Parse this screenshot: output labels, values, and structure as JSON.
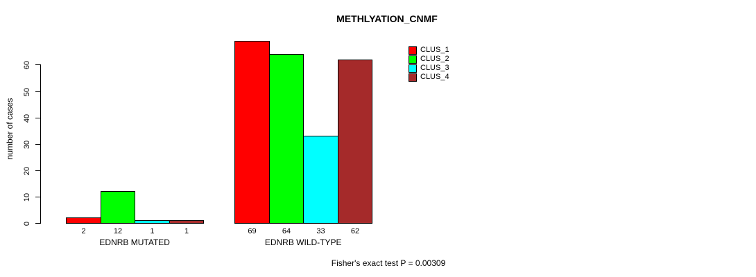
{
  "chart_data": {
    "type": "bar",
    "title": "METHLYATION_CNMF",
    "ylabel": "number of cases",
    "xlabel": "",
    "categories": [
      "EDNRB MUTATED",
      "EDNRB WILD-TYPE"
    ],
    "series": [
      {
        "name": "CLUS_1",
        "color": "#FF0000",
        "values": [
          2,
          69
        ]
      },
      {
        "name": "CLUS_2",
        "color": "#00FF00",
        "values": [
          12,
          64
        ]
      },
      {
        "name": "CLUS_3",
        "color": "#00FFFF",
        "values": [
          1,
          33
        ]
      },
      {
        "name": "CLUS_4",
        "color": "#A52A2A",
        "values": [
          1,
          62
        ]
      }
    ],
    "yticks": [
      0,
      10,
      20,
      30,
      40,
      50,
      60
    ],
    "ylim": [
      0,
      60
    ],
    "grid": false,
    "legend_position": "top-right",
    "legend_entries": [
      "CLUS_1",
      "CLUS_2",
      "CLUS_3",
      "CLUS_4"
    ],
    "annotation": "Fisher's exact test P = 0.00309"
  }
}
